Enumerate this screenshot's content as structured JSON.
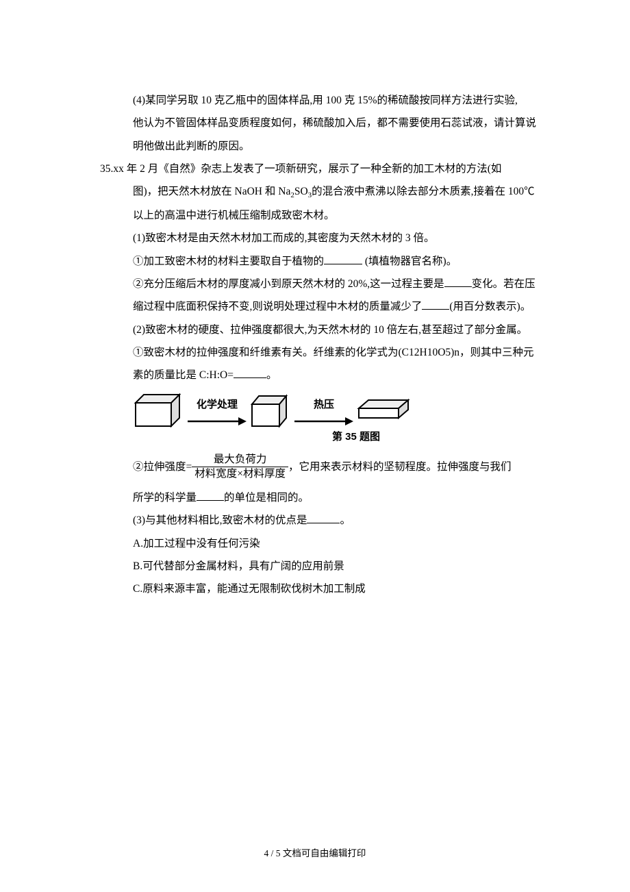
{
  "q34": {
    "part4_l1": "(4)某同学另取 10 克乙瓶中的固体样品,用 100 克 15%的稀硫酸按同样方法进行实验,",
    "part4_l2": "他认为不管固体样品变质程度如何，稀硫酸加入后，都不需要使用石蕊试液，请计算说",
    "part4_l3": "明他做出此判断的原因。"
  },
  "q35": {
    "head_l1_pre": "35.xx 年 2 月《自然》杂志上发表了一项新研究，展示了一种全新的加工木材的方法(如",
    "head_l2": "图)，把天然木材放在 NaOH 和 Na",
    "head_l2_sub": "2",
    "head_l2_mid": "SO",
    "head_l2_sub2": "3",
    "head_l2_after": "的混合液中煮沸以除去部分木质素,接着在 100℃",
    "head_l3": "以上的高温中进行机械压缩制成致密木材。",
    "p1": "(1)致密木材是由天然木材加工而成的,其密度为天然木材的 3 倍。",
    "p1_1_pre": "①加工致密木材的材料主要取自于植物的",
    "p1_1_after": "  (填植物器官名称)。",
    "p1_2_l1_pre": "②充分压缩后木材的厚度减小到原天然木材的 20%,这一过程主要是",
    "p1_2_l1_after": "变化。若在压",
    "p1_2_l2_pre": "缩过程中底面积保持不变,则说明处理过程中木材的质量减少了",
    "p1_2_l2_after": "(用百分数表示)。",
    "p2_l1": "(2)致密木材的硬度、拉伸强度都很大,为天然木材的 10 倍左右,甚至超过了部分金属。",
    "p2_1_l1": "①致密木材的拉伸强度和纤维素有关。纤维素的化学式为(C12H10O5)n，则其中三种元",
    "p2_1_l2_pre": "素的质量比是 C:H:O=",
    "p2_1_l2_after": "。",
    "fig_arrow1": "化学处理",
    "fig_arrow2": "热压",
    "fig_caption": "第 35 题图",
    "p2_2_pre": "②拉伸强度=",
    "frac_num": "最大负荷力",
    "frac_den": "材料宽度×材料厚度",
    "p2_2_after": "，它用来表示材料的坚韧程度。拉伸强度与我们",
    "p2_2_l2_pre": "所学的科学量",
    "p2_2_l2_after": "的单位是相同的。",
    "p3_pre": "(3)与其他材料相比,致密木材的优点是",
    "p3_after": "。",
    "optA": "A.加工过程中没有任何污染",
    "optB": "B.可代替部分金属材料，具有广阔的应用前景",
    "optC": "C.原料来源丰富，能通过无限制砍伐树木加工制成"
  },
  "footer": "4 / 5 文档可自由编辑打印",
  "blanks": {
    "short": 56,
    "med": 40,
    "tiny": 40,
    "small": 48
  },
  "colors": {
    "text": "#000000",
    "bg": "#ffffff"
  }
}
